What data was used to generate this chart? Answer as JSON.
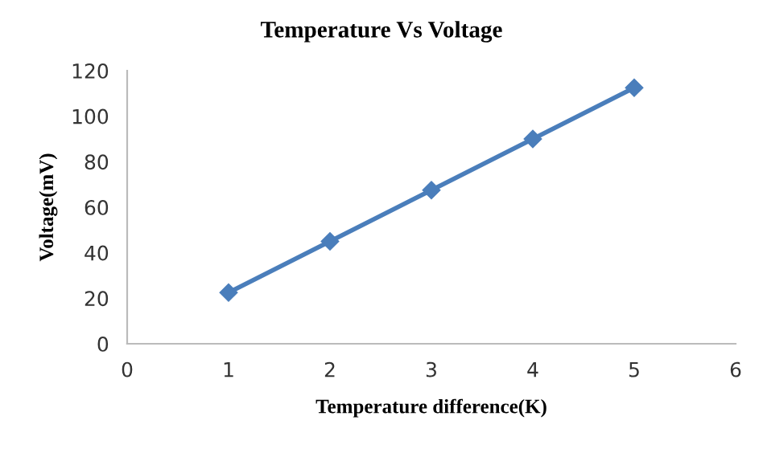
{
  "chart_data": {
    "type": "line",
    "title": "Temperature Vs Voltage",
    "xlabel": "Temperature difference(K)",
    "ylabel": "Voltage(mV)",
    "x": [
      1,
      2,
      3,
      4,
      5
    ],
    "series": [
      {
        "color": "#4a7ebb",
        "values": [
          22.5,
          45,
          67.5,
          90,
          112.5
        ]
      }
    ],
    "xlim": [
      0,
      6
    ],
    "xticks": [
      0,
      1,
      2,
      3,
      4,
      5,
      6
    ],
    "ylim": [
      0,
      120
    ],
    "yticks": [
      0,
      20,
      40,
      60,
      80,
      100,
      120
    ],
    "marker": "diamond",
    "line_style": "solid",
    "grid": false,
    "legend": false
  }
}
